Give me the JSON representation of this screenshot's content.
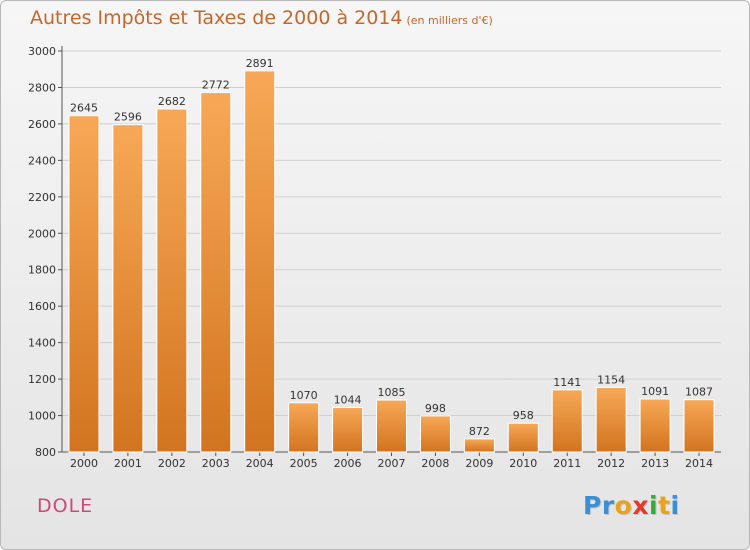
{
  "title": "Autres Impôts et Taxes de 2000 à 2014",
  "unit_label": "(en milliers d'€)",
  "town": "DOLE",
  "logo": {
    "p1": "Pr",
    "p2": "o",
    "p3": "x",
    "p4": "i",
    "p5": "t",
    "p6": "i"
  },
  "colors": {
    "bar_light": "#f7a856",
    "bar_dark": "#d2741f",
    "title": "#c8662a",
    "town": "#cc4a7a"
  },
  "chart_data": {
    "type": "bar",
    "title": "Autres Impôts et Taxes de 2000 à 2014",
    "xlabel": "",
    "ylabel": "",
    "categories": [
      "2000",
      "2001",
      "2002",
      "2003",
      "2004",
      "2005",
      "2006",
      "2007",
      "2008",
      "2009",
      "2010",
      "2011",
      "2012",
      "2013",
      "2014"
    ],
    "values": [
      2645,
      2596,
      2682,
      2772,
      2891,
      1070,
      1044,
      1085,
      998,
      872,
      958,
      1141,
      1154,
      1091,
      1087
    ],
    "ylim": [
      800,
      3000
    ],
    "yticks": [
      800,
      1000,
      1200,
      1400,
      1600,
      1800,
      2000,
      2200,
      2400,
      2600,
      2800,
      3000
    ],
    "grid": "horizontal",
    "legend": "none"
  }
}
